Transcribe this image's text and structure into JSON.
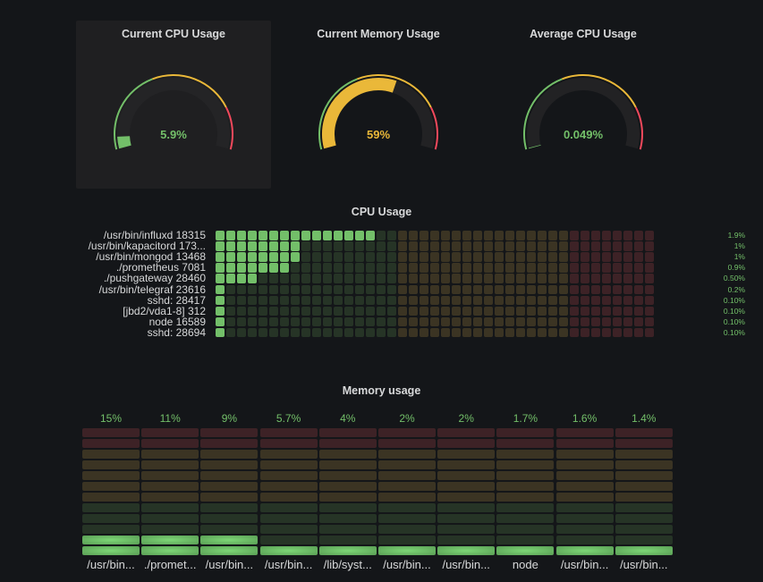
{
  "colors": {
    "green": "#73bf69",
    "yellow": "#eab839",
    "red": "#f2495c",
    "green_dim": "#263426",
    "yellow_dim": "#3b3423",
    "red_dim": "#3d2226",
    "track": "#222224"
  },
  "thresholds": [
    40,
    80
  ],
  "max": 100,
  "gauges": [
    {
      "title": "Current CPU Usage",
      "value": 5.9,
      "display": "5.9%",
      "color": "#73bf69"
    },
    {
      "title": "Current Memory Usage",
      "value": 59,
      "display": "59%",
      "color": "#eab839"
    },
    {
      "title": "Average CPU Usage",
      "value": 0.049,
      "display": "0.049%",
      "color": "#73bf69"
    }
  ],
  "cpu_usage": {
    "title": "CPU Usage",
    "rows": [
      {
        "label": "/usr/bin/influxd 18315",
        "value": 1.9,
        "display": "1.9%"
      },
      {
        "label": "/usr/bin/kapacitord 173...",
        "value": 1,
        "display": "1%"
      },
      {
        "label": "/usr/bin/mongod 13468",
        "value": 1,
        "display": "1%"
      },
      {
        "label": "./prometheus 7081",
        "value": 0.9,
        "display": "0.9%"
      },
      {
        "label": "./pushgateway 28460",
        "value": 0.5,
        "display": "0.50%"
      },
      {
        "label": "/usr/bin/telegraf 23616",
        "value": 0.2,
        "display": "0.2%"
      },
      {
        "label": "sshd: 28417",
        "value": 0.1,
        "display": "0.10%"
      },
      {
        "label": "[jbd2/vda1-8] 312",
        "value": 0.1,
        "display": "0.10%"
      },
      {
        "label": "node 16589",
        "value": 0.1,
        "display": "0.10%"
      },
      {
        "label": "sshd: 28694",
        "value": 0.1,
        "display": "0.10%"
      }
    ]
  },
  "memory_usage": {
    "title": "Memory usage",
    "columns": [
      {
        "name": "/usr/bin...",
        "value": 15,
        "display": "15%"
      },
      {
        "name": "./promet...",
        "value": 11,
        "display": "11%"
      },
      {
        "name": "/usr/bin...",
        "value": 9,
        "display": "9%"
      },
      {
        "name": "/usr/bin...",
        "value": 5.7,
        "display": "5.7%"
      },
      {
        "name": "/lib/syst...",
        "value": 4,
        "display": "4%"
      },
      {
        "name": "/usr/bin...",
        "value": 2,
        "display": "2%"
      },
      {
        "name": "/usr/bin...",
        "value": 2,
        "display": "2%"
      },
      {
        "name": "node",
        "value": 1.7,
        "display": "1.7%"
      },
      {
        "name": "/usr/bin...",
        "value": 1.6,
        "display": "1.6%"
      },
      {
        "name": "/usr/bin...",
        "value": 1.4,
        "display": "1.4%"
      }
    ]
  }
}
